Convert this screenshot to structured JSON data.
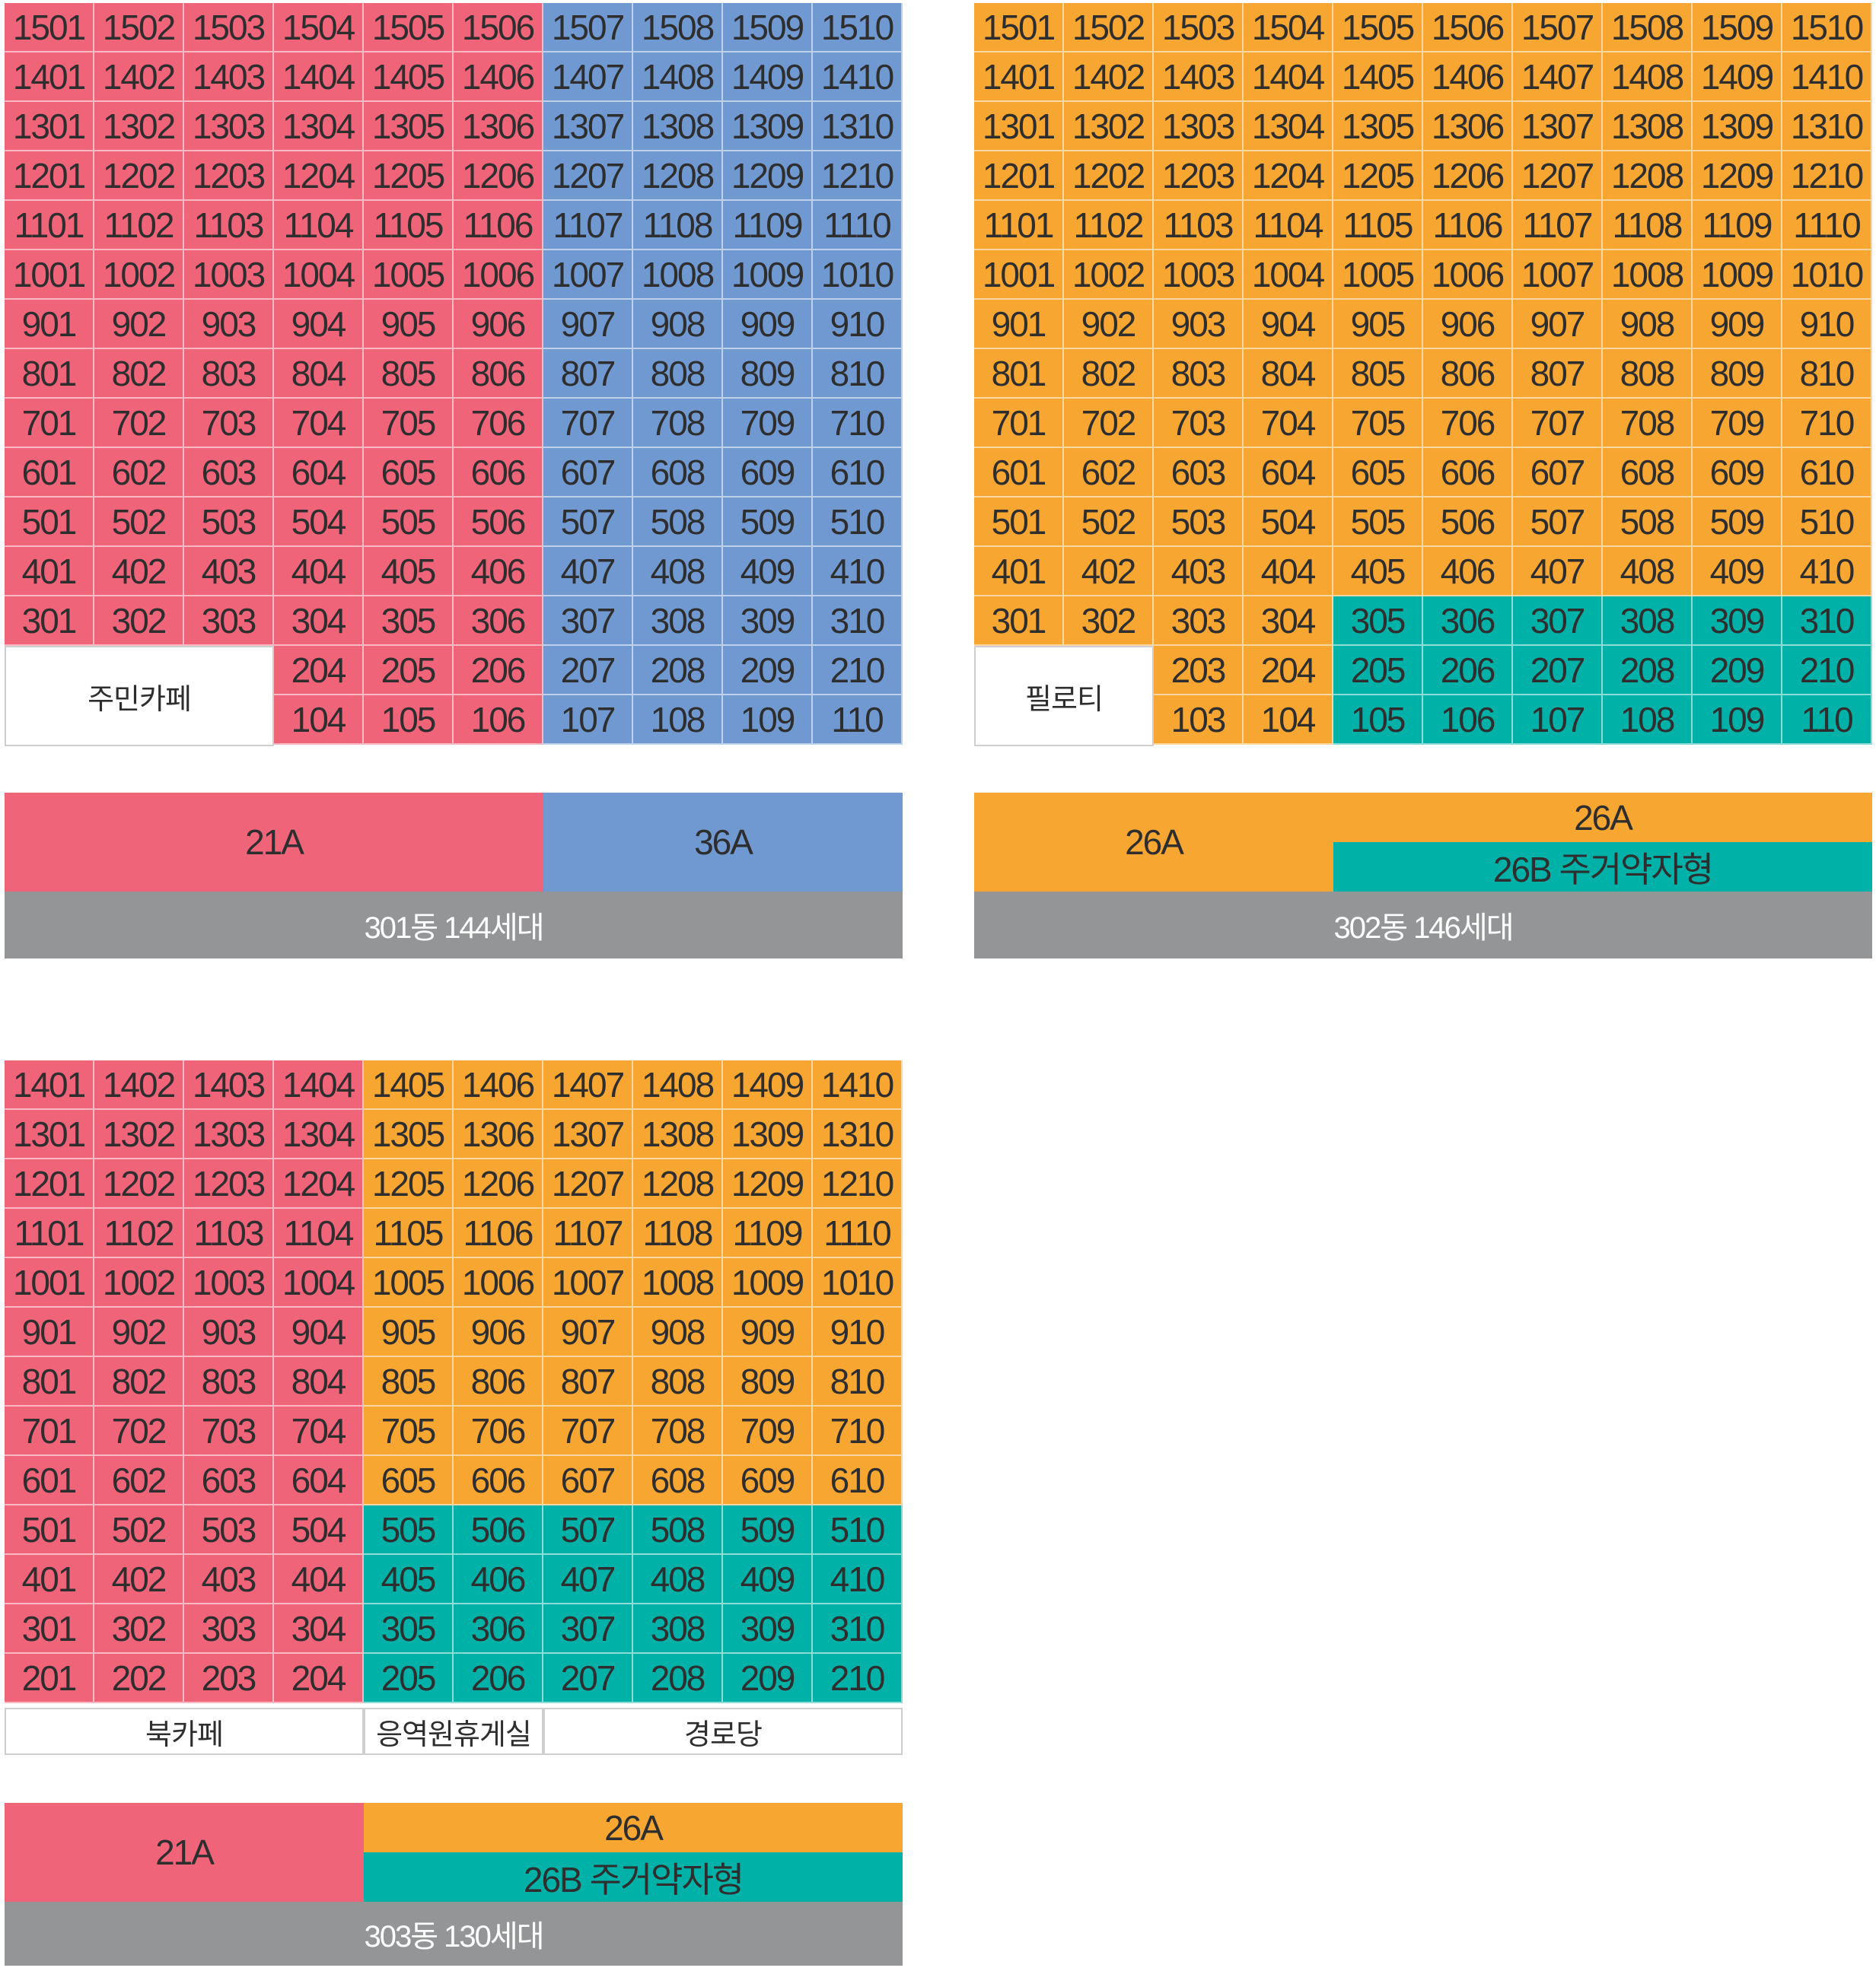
{
  "colors": {
    "pink": "#f0647a",
    "blue": "#7099d1",
    "orange": "#f6a631",
    "teal": "#00b1a8",
    "gray": "#939597",
    "white": "#ffffff"
  },
  "buildings": [
    {
      "id": "301",
      "rows": [
        [
          "1501",
          "1502",
          "1503",
          "1504",
          "1505",
          "1506",
          "1507",
          "1508",
          "1509",
          "1510"
        ],
        [
          "1401",
          "1402",
          "1403",
          "1404",
          "1405",
          "1406",
          "1407",
          "1408",
          "1409",
          "1410"
        ],
        [
          "1301",
          "1302",
          "1303",
          "1304",
          "1305",
          "1306",
          "1307",
          "1308",
          "1309",
          "1310"
        ],
        [
          "1201",
          "1202",
          "1203",
          "1204",
          "1205",
          "1206",
          "1207",
          "1208",
          "1209",
          "1210"
        ],
        [
          "1101",
          "1102",
          "1103",
          "1104",
          "1105",
          "1106",
          "1107",
          "1108",
          "1109",
          "1110"
        ],
        [
          "1001",
          "1002",
          "1003",
          "1004",
          "1005",
          "1006",
          "1007",
          "1008",
          "1009",
          "1010"
        ],
        [
          "901",
          "902",
          "903",
          "904",
          "905",
          "906",
          "907",
          "908",
          "909",
          "910"
        ],
        [
          "801",
          "802",
          "803",
          "804",
          "805",
          "806",
          "807",
          "808",
          "809",
          "810"
        ],
        [
          "701",
          "702",
          "703",
          "704",
          "705",
          "706",
          "707",
          "708",
          "709",
          "710"
        ],
        [
          "601",
          "602",
          "603",
          "604",
          "605",
          "606",
          "607",
          "608",
          "609",
          "610"
        ],
        [
          "501",
          "502",
          "503",
          "504",
          "505",
          "506",
          "507",
          "508",
          "509",
          "510"
        ],
        [
          "401",
          "402",
          "403",
          "404",
          "405",
          "406",
          "407",
          "408",
          "409",
          "410"
        ],
        [
          "301",
          "302",
          "303",
          "304",
          "305",
          "306",
          "307",
          "308",
          "309",
          "310"
        ],
        [
          null,
          null,
          null,
          "204",
          "205",
          "206",
          "207",
          "208",
          "209",
          "210"
        ],
        [
          null,
          null,
          null,
          "104",
          "105",
          "106",
          "107",
          "108",
          "109",
          "110"
        ]
      ],
      "unit_colors": "cols 1-6 pink (21A), cols 7-10 blue (36A)",
      "facility_label": "주민카페",
      "legend": {
        "type_a": "21A",
        "type_b": "36A"
      },
      "caption": "301동 144세대"
    },
    {
      "id": "302",
      "rows": [
        [
          "1501",
          "1502",
          "1503",
          "1504",
          "1505",
          "1506",
          "1507",
          "1508",
          "1509",
          "1510"
        ],
        [
          "1401",
          "1402",
          "1403",
          "1404",
          "1405",
          "1406",
          "1407",
          "1408",
          "1409",
          "1410"
        ],
        [
          "1301",
          "1302",
          "1303",
          "1304",
          "1305",
          "1306",
          "1307",
          "1308",
          "1309",
          "1310"
        ],
        [
          "1201",
          "1202",
          "1203",
          "1204",
          "1205",
          "1206",
          "1207",
          "1208",
          "1209",
          "1210"
        ],
        [
          "1101",
          "1102",
          "1103",
          "1104",
          "1105",
          "1106",
          "1107",
          "1108",
          "1109",
          "1110"
        ],
        [
          "1001",
          "1002",
          "1003",
          "1004",
          "1005",
          "1006",
          "1007",
          "1008",
          "1009",
          "1010"
        ],
        [
          "901",
          "902",
          "903",
          "904",
          "905",
          "906",
          "907",
          "908",
          "909",
          "910"
        ],
        [
          "801",
          "802",
          "803",
          "804",
          "805",
          "806",
          "807",
          "808",
          "809",
          "810"
        ],
        [
          "701",
          "702",
          "703",
          "704",
          "705",
          "706",
          "707",
          "708",
          "709",
          "710"
        ],
        [
          "601",
          "602",
          "603",
          "604",
          "605",
          "606",
          "607",
          "608",
          "609",
          "610"
        ],
        [
          "501",
          "502",
          "503",
          "504",
          "505",
          "506",
          "507",
          "508",
          "509",
          "510"
        ],
        [
          "401",
          "402",
          "403",
          "404",
          "405",
          "406",
          "407",
          "408",
          "409",
          "410"
        ],
        [
          "301",
          "302",
          "303",
          "304",
          "305",
          "306",
          "307",
          "308",
          "309",
          "310"
        ],
        [
          null,
          null,
          "203",
          "204",
          "205",
          "206",
          "207",
          "208",
          "209",
          "210"
        ],
        [
          null,
          null,
          "103",
          "104",
          "105",
          "106",
          "107",
          "108",
          "109",
          "110"
        ]
      ],
      "unit_colors": "orange (26A); teal (26B) for 305-310, 205-210, 105-110",
      "facility_label": "필로티",
      "legend": {
        "type_a": "26A",
        "type_b_top": "26A",
        "type_b_bottom": "26B 주거약자형"
      },
      "caption": "302동 146세대"
    },
    {
      "id": "303",
      "rows": [
        [
          "1401",
          "1402",
          "1403",
          "1404",
          "1405",
          "1406",
          "1407",
          "1408",
          "1409",
          "1410"
        ],
        [
          "1301",
          "1302",
          "1303",
          "1304",
          "1305",
          "1306",
          "1307",
          "1308",
          "1309",
          "1310"
        ],
        [
          "1201",
          "1202",
          "1203",
          "1204",
          "1205",
          "1206",
          "1207",
          "1208",
          "1209",
          "1210"
        ],
        [
          "1101",
          "1102",
          "1103",
          "1104",
          "1105",
          "1106",
          "1107",
          "1108",
          "1109",
          "1110"
        ],
        [
          "1001",
          "1002",
          "1003",
          "1004",
          "1005",
          "1006",
          "1007",
          "1008",
          "1009",
          "1010"
        ],
        [
          "901",
          "902",
          "903",
          "904",
          "905",
          "906",
          "907",
          "908",
          "909",
          "910"
        ],
        [
          "801",
          "802",
          "803",
          "804",
          "805",
          "806",
          "807",
          "808",
          "809",
          "810"
        ],
        [
          "701",
          "702",
          "703",
          "704",
          "705",
          "706",
          "707",
          "708",
          "709",
          "710"
        ],
        [
          "601",
          "602",
          "603",
          "604",
          "605",
          "606",
          "607",
          "608",
          "609",
          "610"
        ],
        [
          "501",
          "502",
          "503",
          "504",
          "505",
          "506",
          "507",
          "508",
          "509",
          "510"
        ],
        [
          "401",
          "402",
          "403",
          "404",
          "405",
          "406",
          "407",
          "408",
          "409",
          "410"
        ],
        [
          "301",
          "302",
          "303",
          "304",
          "305",
          "306",
          "307",
          "308",
          "309",
          "310"
        ],
        [
          "201",
          "202",
          "203",
          "204",
          "205",
          "206",
          "207",
          "208",
          "209",
          "210"
        ]
      ],
      "unit_colors": "cols 1-4 pink (21A); cols 5-10 orange (26A) for floors 6-14, teal (26B) for floors 2-5",
      "facility_labels": [
        "북카페",
        "응역원휴게실",
        "경로당"
      ],
      "legend": {
        "type_a": "21A",
        "type_b_top": "26A",
        "type_b_bottom": "26B 주거약자형"
      },
      "caption": "303동 130세대"
    }
  ]
}
